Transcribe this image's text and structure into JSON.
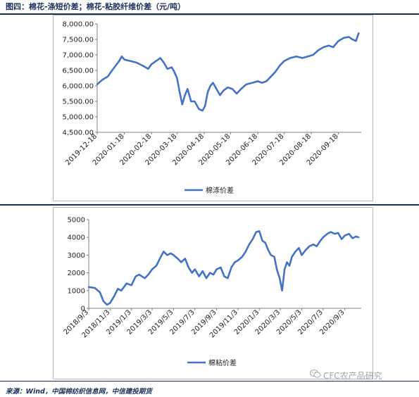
{
  "header": {
    "title": "图四：棉花-涤短价差；棉花-粘胶纤维价差（元/吨）"
  },
  "footer": {
    "source": "来源：Wind，中国棉纺织信息网，中信建投期货"
  },
  "watermark": {
    "text": "CFC农产品研究",
    "icon": "wechat-bubble-icon"
  },
  "colors": {
    "line": "#4472c4",
    "accent": "#1c2f5a"
  },
  "chart_data": [
    {
      "type": "line",
      "title": "",
      "xlabel": "",
      "ylabel": "",
      "ylim": [
        4500,
        8000
      ],
      "y_ticks": [
        "4,500.00",
        "5,000.00",
        "5,500.00",
        "6,000.00",
        "6,500.00",
        "7,000.00",
        "7,500.00",
        "8,000.00"
      ],
      "x_ticks": [
        "2019-12-18",
        "2020-01-18",
        "2020-02-18",
        "2020-03-18",
        "2020-04-18",
        "2020-05-18",
        "2020-06-18",
        "2020-07-18",
        "2020-08-18",
        "2020-09-18"
      ],
      "legend": "bottom",
      "grid": false,
      "series": [
        {
          "name": "棉涤价差",
          "points": [
            [
              "2019-12-18",
              6050
            ],
            [
              "2019-12-24",
              6200
            ],
            [
              "2019-12-30",
              6300
            ],
            [
              "2020-01-04",
              6500
            ],
            [
              "2020-01-08",
              6650
            ],
            [
              "2020-01-12",
              6800
            ],
            [
              "2020-01-15",
              6950
            ],
            [
              "2020-01-18",
              6850
            ],
            [
              "2020-01-25",
              6800
            ],
            [
              "2020-02-01",
              6750
            ],
            [
              "2020-02-08",
              6650
            ],
            [
              "2020-02-14",
              6550
            ],
            [
              "2020-02-18",
              6700
            ],
            [
              "2020-02-23",
              6800
            ],
            [
              "2020-02-28",
              6900
            ],
            [
              "2020-03-03",
              6750
            ],
            [
              "2020-03-07",
              6550
            ],
            [
              "2020-03-12",
              6600
            ],
            [
              "2020-03-15",
              6450
            ],
            [
              "2020-03-18",
              6250
            ],
            [
              "2020-03-21",
              5800
            ],
            [
              "2020-03-24",
              5400
            ],
            [
              "2020-03-27",
              5700
            ],
            [
              "2020-03-30",
              5900
            ],
            [
              "2020-04-03",
              5500
            ],
            [
              "2020-04-07",
              5500
            ],
            [
              "2020-04-12",
              5250
            ],
            [
              "2020-04-16",
              5200
            ],
            [
              "2020-04-19",
              5350
            ],
            [
              "2020-04-22",
              5800
            ],
            [
              "2020-04-25",
              6000
            ],
            [
              "2020-04-28",
              6100
            ],
            [
              "2020-05-02",
              5900
            ],
            [
              "2020-05-06",
              5700
            ],
            [
              "2020-05-10",
              5850
            ],
            [
              "2020-05-15",
              5950
            ],
            [
              "2020-05-20",
              5900
            ],
            [
              "2020-05-25",
              5750
            ],
            [
              "2020-05-30",
              5900
            ],
            [
              "2020-06-05",
              6050
            ],
            [
              "2020-06-12",
              6100
            ],
            [
              "2020-06-18",
              6150
            ],
            [
              "2020-06-23",
              6100
            ],
            [
              "2020-06-28",
              6150
            ],
            [
              "2020-07-03",
              6300
            ],
            [
              "2020-07-08",
              6450
            ],
            [
              "2020-07-13",
              6650
            ],
            [
              "2020-07-18",
              6800
            ],
            [
              "2020-07-25",
              6900
            ],
            [
              "2020-08-01",
              6950
            ],
            [
              "2020-08-08",
              6900
            ],
            [
              "2020-08-14",
              6950
            ],
            [
              "2020-08-20",
              7000
            ],
            [
              "2020-08-26",
              7150
            ],
            [
              "2020-09-01",
              7250
            ],
            [
              "2020-09-07",
              7300
            ],
            [
              "2020-09-12",
              7250
            ],
            [
              "2020-09-18",
              7450
            ],
            [
              "2020-09-24",
              7550
            ],
            [
              "2020-09-30",
              7580
            ],
            [
              "2020-10-04",
              7500
            ],
            [
              "2020-10-08",
              7450
            ],
            [
              "2020-10-11",
              7700
            ]
          ]
        }
      ]
    },
    {
      "type": "line",
      "title": "",
      "xlabel": "",
      "ylabel": "",
      "ylim": [
        0,
        5000
      ],
      "y_ticks": [
        "0",
        "1000",
        "2000",
        "3000",
        "4000",
        "5000"
      ],
      "x_ticks": [
        "2018/9/3",
        "2018/11/3",
        "2019/1/3",
        "2019/3/3",
        "2019/5/3",
        "2019/7/3",
        "2019/9/3",
        "2019/11/3",
        "2020/1/3",
        "2020/3/3",
        "2020/5/3",
        "2020/7/3",
        "2020/9/3"
      ],
      "legend": "bottom",
      "grid": false,
      "series": [
        {
          "name": "棉粘价差",
          "points": [
            [
              "2018-09-03",
              1200
            ],
            [
              "2018-09-20",
              1150
            ],
            [
              "2018-10-05",
              900
            ],
            [
              "2018-10-15",
              400
            ],
            [
              "2018-10-25",
              200
            ],
            [
              "2018-11-03",
              300
            ],
            [
              "2018-11-15",
              700
            ],
            [
              "2018-11-25",
              1100
            ],
            [
              "2018-12-05",
              1000
            ],
            [
              "2018-12-20",
              1400
            ],
            [
              "2019-01-03",
              1300
            ],
            [
              "2019-01-15",
              1800
            ],
            [
              "2019-01-25",
              1900
            ],
            [
              "2019-02-10",
              1700
            ],
            [
              "2019-02-20",
              1900
            ],
            [
              "2019-03-03",
              2200
            ],
            [
              "2019-03-15",
              2400
            ],
            [
              "2019-03-25",
              2800
            ],
            [
              "2019-04-05",
              3200
            ],
            [
              "2019-04-15",
              3000
            ],
            [
              "2019-04-25",
              3100
            ],
            [
              "2019-05-03",
              3000
            ],
            [
              "2019-05-15",
              2800
            ],
            [
              "2019-05-25",
              2600
            ],
            [
              "2019-06-05",
              2800
            ],
            [
              "2019-06-15",
              2300
            ],
            [
              "2019-06-25",
              2000
            ],
            [
              "2019-07-03",
              2200
            ],
            [
              "2019-07-15",
              1800
            ],
            [
              "2019-07-25",
              2100
            ],
            [
              "2019-08-05",
              1700
            ],
            [
              "2019-08-15",
              2000
            ],
            [
              "2019-08-25",
              1900
            ],
            [
              "2019-09-03",
              2200
            ],
            [
              "2019-09-15",
              2300
            ],
            [
              "2019-09-25",
              1800
            ],
            [
              "2019-10-05",
              1700
            ],
            [
              "2019-10-15",
              2300
            ],
            [
              "2019-10-25",
              2600
            ],
            [
              "2019-11-03",
              2700
            ],
            [
              "2019-11-15",
              2900
            ],
            [
              "2019-11-25",
              3200
            ],
            [
              "2019-12-05",
              3600
            ],
            [
              "2019-12-15",
              3900
            ],
            [
              "2019-12-25",
              4300
            ],
            [
              "2020-01-03",
              4350
            ],
            [
              "2020-01-12",
              3800
            ],
            [
              "2020-01-20",
              3700
            ],
            [
              "2020-01-28",
              3300
            ],
            [
              "2020-02-05",
              3000
            ],
            [
              "2020-02-15",
              2900
            ],
            [
              "2020-02-22",
              2200
            ],
            [
              "2020-03-01",
              1700
            ],
            [
              "2020-03-08",
              1000
            ],
            [
              "2020-03-15",
              2200
            ],
            [
              "2020-03-22",
              2600
            ],
            [
              "2020-03-29",
              2400
            ],
            [
              "2020-04-05",
              2900
            ],
            [
              "2020-04-15",
              3200
            ],
            [
              "2020-04-25",
              3400
            ],
            [
              "2020-05-03",
              3000
            ],
            [
              "2020-05-15",
              3300
            ],
            [
              "2020-05-25",
              3500
            ],
            [
              "2020-06-05",
              3600
            ],
            [
              "2020-06-15",
              3500
            ],
            [
              "2020-06-25",
              3800
            ],
            [
              "2020-07-03",
              4000
            ],
            [
              "2020-07-15",
              4200
            ],
            [
              "2020-07-25",
              4300
            ],
            [
              "2020-08-05",
              4200
            ],
            [
              "2020-08-15",
              4250
            ],
            [
              "2020-08-25",
              3900
            ],
            [
              "2020-09-03",
              4100
            ],
            [
              "2020-09-15",
              4200
            ],
            [
              "2020-09-25",
              3950
            ],
            [
              "2020-10-05",
              4050
            ],
            [
              "2020-10-12",
              4000
            ]
          ]
        }
      ]
    }
  ]
}
